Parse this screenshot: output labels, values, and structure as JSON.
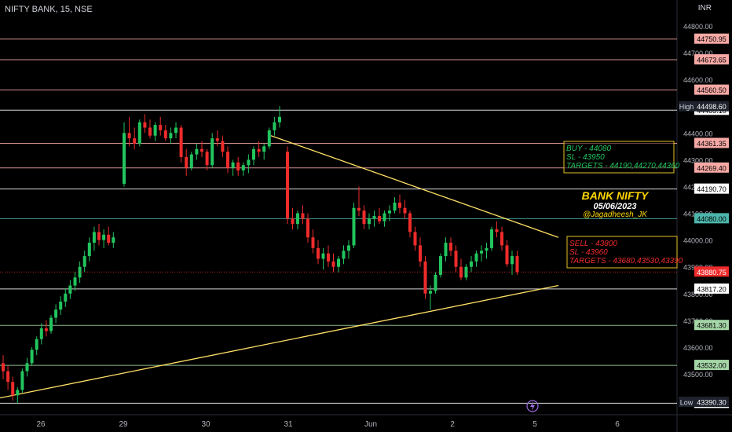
{
  "header": {
    "symbol_line": "NIFTY BANK, 15, NSE",
    "currency": "INR"
  },
  "chart_data": {
    "type": "candlestick",
    "y_ticks": [
      43500,
      43600,
      43700,
      43800,
      43900,
      44000,
      44100,
      44200,
      44300,
      44400,
      44500,
      44600,
      44700,
      44800
    ],
    "y_tick_labels": [
      "43500.00",
      "43600.00",
      "43700.00",
      "43800.00",
      "43900.00",
      "44000.00",
      "44100.00",
      "44200.00",
      "44300.00",
      "44400.00",
      "44500.00",
      "44600.00",
      "44700.00",
      "44800.00"
    ],
    "x_ticks": [
      "26",
      "29",
      "30",
      "31",
      "Jun",
      "2",
      "5",
      "6"
    ],
    "ylim": [
      43375,
      44875
    ],
    "horizontal_levels": [
      {
        "value": 44750.95,
        "label": "44750.95",
        "color": "#f7a9a5"
      },
      {
        "value": 44673.65,
        "label": "44673.65",
        "color": "#f7a9a5"
      },
      {
        "value": 44560.5,
        "label": "44560.50",
        "color": "#f7a9a5"
      },
      {
        "value": 44485.1,
        "label": "44485.10",
        "color": "#ffffff"
      },
      {
        "value": 44361.35,
        "label": "44361.35",
        "color": "#f7a9a5"
      },
      {
        "value": 44269.4,
        "label": "44269.40",
        "color": "#f7a9a5"
      },
      {
        "value": 44190.7,
        "label": "44190.70",
        "color": "#ffffff"
      },
      {
        "value": 44080.0,
        "label": "44080.00",
        "color": "#4db6ac"
      },
      {
        "value": 43817.2,
        "label": "43817.20",
        "color": "#ffffff"
      },
      {
        "value": 43681.3,
        "label": "43681.30",
        "color": "#a5d6a7"
      },
      {
        "value": 43532.0,
        "label": "43532.00",
        "color": "#a5d6a7"
      },
      {
        "value": 43390.3,
        "label": "43390.30",
        "color": "#ffffff"
      }
    ],
    "markers": {
      "high_label": "High",
      "high_value": "44498.60",
      "low_label": "Low",
      "low_value": "43390.30",
      "last_price": "43880.75"
    },
    "bull_color": "#22c55e",
    "bear_color": "#ef2b2b",
    "annotations": {
      "buy": [
        "BUY - 44080",
        "SL - 43950",
        "TARGETS - 44190,44270,44360"
      ],
      "sell": [
        "SELL - 43800",
        "SL - 43960",
        "TARGETS - 43680,43530,43390"
      ],
      "title": "BANK NIFTY",
      "date": "05/06/2023",
      "handle": "@Jagadheesh_JK"
    },
    "trendlines": [
      {
        "from": [
          "31",
          44390
        ],
        "to": [
          "5+",
          44010
        ],
        "color": "#ffe066"
      },
      {
        "from": [
          "26-",
          43410
        ],
        "to": [
          "5+",
          43830
        ],
        "color": "#ffe066"
      }
    ],
    "candles": [
      [
        43540,
        43570,
        43480,
        43510
      ],
      [
        43510,
        43530,
        43440,
        43470
      ],
      [
        43470,
        43490,
        43400,
        43420
      ],
      [
        43420,
        43450,
        43390,
        43440
      ],
      [
        43440,
        43520,
        43430,
        43510
      ],
      [
        43510,
        43560,
        43490,
        43540
      ],
      [
        43540,
        43600,
        43530,
        43590
      ],
      [
        43590,
        43640,
        43570,
        43630
      ],
      [
        43630,
        43690,
        43610,
        43670
      ],
      [
        43670,
        43700,
        43640,
        43660
      ],
      [
        43660,
        43720,
        43650,
        43710
      ],
      [
        43710,
        43760,
        43690,
        43740
      ],
      [
        43740,
        43790,
        43720,
        43770
      ],
      [
        43770,
        43820,
        43750,
        43800
      ],
      [
        43800,
        43850,
        43780,
        43830
      ],
      [
        43830,
        43880,
        43810,
        43860
      ],
      [
        43860,
        43920,
        43840,
        43900
      ],
      [
        43900,
        43960,
        43880,
        43940
      ],
      [
        43940,
        44010,
        43920,
        43990
      ],
      [
        43990,
        44050,
        43960,
        44030
      ],
      [
        44030,
        44060,
        43980,
        44000
      ],
      [
        44000,
        44040,
        43970,
        44020
      ],
      [
        44020,
        44050,
        43980,
        43990
      ],
      [
        43990,
        44030,
        43970,
        44010
      ],
      [
        44210,
        44440,
        44200,
        44400
      ],
      [
        44400,
        44460,
        44350,
        44380
      ],
      [
        44380,
        44420,
        44340,
        44360
      ],
      [
        44360,
        44450,
        44350,
        44440
      ],
      [
        44440,
        44470,
        44400,
        44420
      ],
      [
        44420,
        44450,
        44380,
        44390
      ],
      [
        44390,
        44440,
        44370,
        44430
      ],
      [
        44430,
        44460,
        44390,
        44410
      ],
      [
        44410,
        44430,
        44370,
        44380
      ],
      [
        44380,
        44420,
        44360,
        44400
      ],
      [
        44400,
        44440,
        44380,
        44420
      ],
      [
        44420,
        44430,
        44290,
        44310
      ],
      [
        44310,
        44340,
        44240,
        44270
      ],
      [
        44270,
        44330,
        44260,
        44320
      ],
      [
        44320,
        44360,
        44300,
        44340
      ],
      [
        44340,
        44370,
        44310,
        44330
      ],
      [
        44330,
        44340,
        44260,
        44280
      ],
      [
        44280,
        44400,
        44270,
        44380
      ],
      [
        44380,
        44410,
        44350,
        44370
      ],
      [
        44370,
        44390,
        44310,
        44330
      ],
      [
        44330,
        44350,
        44250,
        44270
      ],
      [
        44270,
        44300,
        44240,
        44290
      ],
      [
        44290,
        44310,
        44240,
        44260
      ],
      [
        44260,
        44290,
        44240,
        44280
      ],
      [
        44280,
        44320,
        44250,
        44300
      ],
      [
        44300,
        44350,
        44280,
        44340
      ],
      [
        44340,
        44370,
        44310,
        44330
      ],
      [
        44330,
        44360,
        44300,
        44350
      ],
      [
        44350,
        44420,
        44340,
        44410
      ],
      [
        44410,
        44460,
        44390,
        44440
      ],
      [
        44440,
        44500,
        44420,
        44460
      ],
      [
        44330,
        44350,
        44060,
        44080
      ],
      [
        44080,
        44120,
        44040,
        44060
      ],
      [
        44060,
        44110,
        44040,
        44100
      ],
      [
        44100,
        44130,
        44060,
        44080
      ],
      [
        44080,
        44100,
        43990,
        44010
      ],
      [
        44010,
        44040,
        43950,
        43970
      ],
      [
        43970,
        44000,
        43910,
        43930
      ],
      [
        43930,
        43970,
        43890,
        43950
      ],
      [
        43950,
        43980,
        43900,
        43920
      ],
      [
        43920,
        43950,
        43880,
        43900
      ],
      [
        43900,
        43940,
        43880,
        43930
      ],
      [
        43930,
        43980,
        43910,
        43960
      ],
      [
        43960,
        44000,
        43930,
        43980
      ],
      [
        43980,
        44140,
        43970,
        44120
      ],
      [
        44120,
        44200,
        44090,
        44110
      ],
      [
        44110,
        44130,
        44040,
        44060
      ],
      [
        44060,
        44100,
        44040,
        44080
      ],
      [
        44080,
        44110,
        44050,
        44090
      ],
      [
        44090,
        44120,
        44060,
        44070
      ],
      [
        44070,
        44110,
        44050,
        44100
      ],
      [
        44100,
        44130,
        44070,
        44110
      ],
      [
        44110,
        44160,
        44100,
        44140
      ],
      [
        44140,
        44170,
        44100,
        44120
      ],
      [
        44120,
        44150,
        44080,
        44100
      ],
      [
        44100,
        44110,
        44010,
        44030
      ],
      [
        44030,
        44050,
        43960,
        43980
      ],
      [
        43980,
        44010,
        43900,
        43920
      ],
      [
        43920,
        43940,
        43780,
        43800
      ],
      [
        43800,
        43830,
        43740,
        43810
      ],
      [
        43810,
        43880,
        43800,
        43870
      ],
      [
        43870,
        43950,
        43860,
        43940
      ],
      [
        43940,
        44010,
        43920,
        43990
      ],
      [
        43990,
        44010,
        43940,
        43960
      ],
      [
        43960,
        43980,
        43880,
        43900
      ],
      [
        43900,
        43930,
        43850,
        43860
      ],
      [
        43860,
        43910,
        43850,
        43900
      ],
      [
        43900,
        43940,
        43880,
        43920
      ],
      [
        43920,
        43960,
        43900,
        43950
      ],
      [
        43950,
        43980,
        43920,
        43960
      ],
      [
        43960,
        43990,
        43930,
        43970
      ],
      [
        43970,
        44050,
        43960,
        44040
      ],
      [
        44040,
        44070,
        44010,
        44030
      ],
      [
        44030,
        44050,
        43960,
        43980
      ],
      [
        43980,
        44000,
        43900,
        43910
      ],
      [
        43910,
        43960,
        43870,
        43940
      ],
      [
        43940,
        43960,
        43870,
        43880
      ]
    ]
  }
}
